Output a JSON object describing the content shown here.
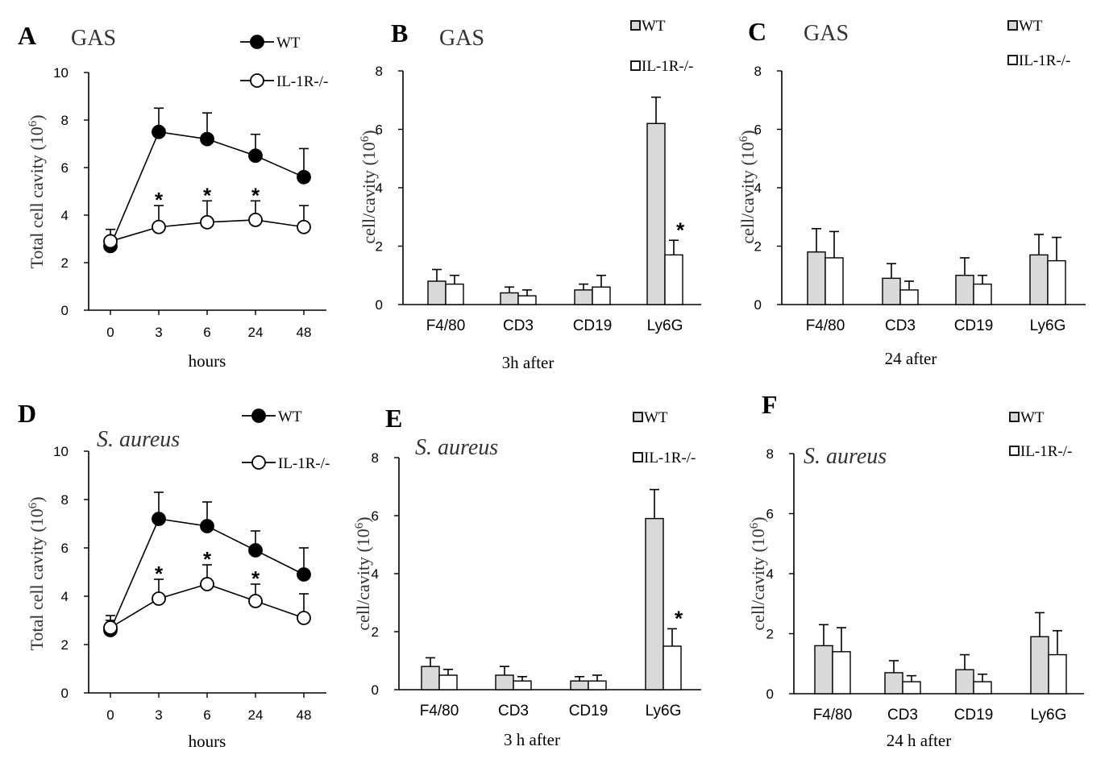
{
  "chart_data": [
    {
      "panel": "A",
      "type": "line",
      "title": "GAS",
      "title_italic": false,
      "categories": [
        "0",
        "3",
        "6",
        "24",
        "48"
      ],
      "ylim": [
        0,
        10
      ],
      "yticks": [
        0,
        2,
        4,
        6,
        8,
        10
      ],
      "xlabel": "hours",
      "ylabel_base": "Total cell cavity (10",
      "ylabel_sup": "6",
      "ylabel_close": ")",
      "series": [
        {
          "name": "WT",
          "marker": "filled",
          "values": [
            2.7,
            7.5,
            7.2,
            6.5,
            5.6
          ],
          "errors": [
            0.3,
            1.0,
            1.1,
            0.9,
            1.2
          ]
        },
        {
          "name": "IL-1R-/-",
          "marker": "open",
          "values": [
            2.9,
            3.5,
            3.7,
            3.8,
            3.5
          ],
          "errors": [
            0.5,
            0.9,
            0.9,
            0.8,
            0.9
          ]
        }
      ],
      "significance": [
        {
          "index": 1,
          "label": "*"
        },
        {
          "index": 2,
          "label": "*"
        },
        {
          "index": 3,
          "label": "*"
        }
      ]
    },
    {
      "panel": "B",
      "type": "bar",
      "title": "GAS",
      "title_italic": false,
      "categories": [
        "F4/80",
        "CD3",
        "CD19",
        "Ly6G"
      ],
      "ylim": [
        0,
        8
      ],
      "yticks": [
        0,
        2,
        4,
        6,
        8
      ],
      "xlabel": "3h after",
      "ylabel_base": "cell/cavity (10",
      "ylabel_sup": "6",
      "ylabel_close": ")",
      "series": [
        {
          "name": "WT",
          "color": "#d9d9d9",
          "values": [
            0.8,
            0.4,
            0.5,
            6.2
          ],
          "errors": [
            0.4,
            0.2,
            0.2,
            0.9
          ]
        },
        {
          "name": "IL-1R-/-",
          "color": "#ffffff",
          "values": [
            0.7,
            0.3,
            0.6,
            1.7
          ],
          "errors": [
            0.3,
            0.2,
            0.4,
            0.5
          ]
        }
      ],
      "significance": [
        {
          "category_index": 3,
          "series_index": 1,
          "label": "*"
        }
      ]
    },
    {
      "panel": "C",
      "type": "bar",
      "title": "GAS",
      "title_italic": false,
      "categories": [
        "F4/80",
        "CD3",
        "CD19",
        "Ly6G"
      ],
      "ylim": [
        0,
        8
      ],
      "yticks": [
        0,
        2,
        4,
        6,
        8
      ],
      "xlabel": "24 after",
      "ylabel_base": "cell/cavity (10",
      "ylabel_sup": "6",
      "ylabel_close": ")",
      "series": [
        {
          "name": "WT",
          "color": "#d9d9d9",
          "values": [
            1.8,
            0.9,
            1.0,
            1.7
          ],
          "errors": [
            0.8,
            0.5,
            0.6,
            0.7
          ]
        },
        {
          "name": "IL-1R-/-",
          "color": "#ffffff",
          "values": [
            1.6,
            0.5,
            0.7,
            1.5
          ],
          "errors": [
            0.9,
            0.3,
            0.3,
            0.8
          ]
        }
      ],
      "significance": []
    },
    {
      "panel": "D",
      "type": "line",
      "title": "S. aureus",
      "title_italic": true,
      "categories": [
        "0",
        "3",
        "6",
        "24",
        "48"
      ],
      "ylim": [
        0,
        10
      ],
      "yticks": [
        0,
        2,
        4,
        6,
        8,
        10
      ],
      "xlabel": "hours",
      "ylabel_base": "Total cell cavity (10",
      "ylabel_sup": "6",
      "ylabel_close": ")",
      "series": [
        {
          "name": "WT",
          "marker": "filled",
          "values": [
            2.6,
            7.2,
            6.9,
            5.9,
            4.9
          ],
          "errors": [
            0.4,
            1.1,
            1.0,
            0.8,
            1.1
          ]
        },
        {
          "name": "IL-1R-/-",
          "marker": "open",
          "values": [
            2.7,
            3.9,
            4.5,
            3.8,
            3.1
          ],
          "errors": [
            0.5,
            0.8,
            0.8,
            0.7,
            1.0
          ]
        }
      ],
      "significance": [
        {
          "index": 1,
          "label": "*"
        },
        {
          "index": 2,
          "label": "*"
        },
        {
          "index": 3,
          "label": "*"
        }
      ]
    },
    {
      "panel": "E",
      "type": "bar",
      "title": "S. aureus",
      "title_italic": true,
      "categories": [
        "F4/80",
        "CD3",
        "CD19",
        "Ly6G"
      ],
      "ylim": [
        0,
        8
      ],
      "yticks": [
        0,
        2,
        4,
        6,
        8
      ],
      "xlabel": "3 h after",
      "ylabel_base": "cell/cavity (10",
      "ylabel_sup": "6",
      "ylabel_close": ")",
      "series": [
        {
          "name": "WT",
          "color": "#d9d9d9",
          "values": [
            0.8,
            0.5,
            0.3,
            5.9
          ],
          "errors": [
            0.3,
            0.3,
            0.15,
            1.0
          ]
        },
        {
          "name": "IL-1R-/-",
          "color": "#ffffff",
          "values": [
            0.5,
            0.3,
            0.3,
            1.5
          ],
          "errors": [
            0.2,
            0.15,
            0.2,
            0.6
          ]
        }
      ],
      "significance": [
        {
          "category_index": 3,
          "series_index": 1,
          "label": "*"
        }
      ]
    },
    {
      "panel": "F",
      "type": "bar",
      "title": "S. aureus",
      "title_italic": true,
      "categories": [
        "F4/80",
        "CD3",
        "CD19",
        "Ly6G"
      ],
      "ylim": [
        0,
        8
      ],
      "yticks": [
        0,
        2,
        4,
        6,
        8
      ],
      "xlabel": "24 h after",
      "ylabel_base": "cell/cavity (10",
      "ylabel_sup": "6",
      "ylabel_close": ")",
      "series": [
        {
          "name": "WT",
          "color": "#d9d9d9",
          "values": [
            1.6,
            0.7,
            0.8,
            1.9
          ],
          "errors": [
            0.7,
            0.4,
            0.5,
            0.8
          ]
        },
        {
          "name": "IL-1R-/-",
          "color": "#ffffff",
          "values": [
            1.4,
            0.4,
            0.4,
            1.3
          ],
          "errors": [
            0.8,
            0.2,
            0.25,
            0.8
          ]
        }
      ],
      "significance": []
    }
  ]
}
